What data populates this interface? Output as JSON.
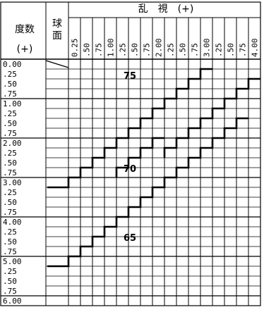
{
  "header": {
    "title_left": "度数",
    "title_left_sub": "(+)",
    "sphere_label_1": "球",
    "sphere_label_2": "面",
    "cyl_title": "乱　視　(+)"
  },
  "columns": [
    "0.25",
    ".50",
    ".75",
    "1.00",
    ".25",
    ".50",
    ".75",
    "2.00",
    ".25",
    ".50",
    ".75",
    "3.00",
    ".25",
    ".50",
    ".75",
    "4.00"
  ],
  "rows": [
    "0.00",
    ".25",
    ".50",
    ".75",
    "1.00",
    ".25",
    ".50",
    ".75",
    "2.00",
    ".25",
    ".50",
    ".75",
    "3.00",
    ".25",
    ".50",
    ".75",
    "4.00",
    ".25",
    ".50",
    ".75",
    "5.00",
    ".25",
    ".50",
    ".75",
    "6.00"
  ],
  "zones": {
    "z75": "75",
    "z70": "70",
    "z65": "65"
  }
}
